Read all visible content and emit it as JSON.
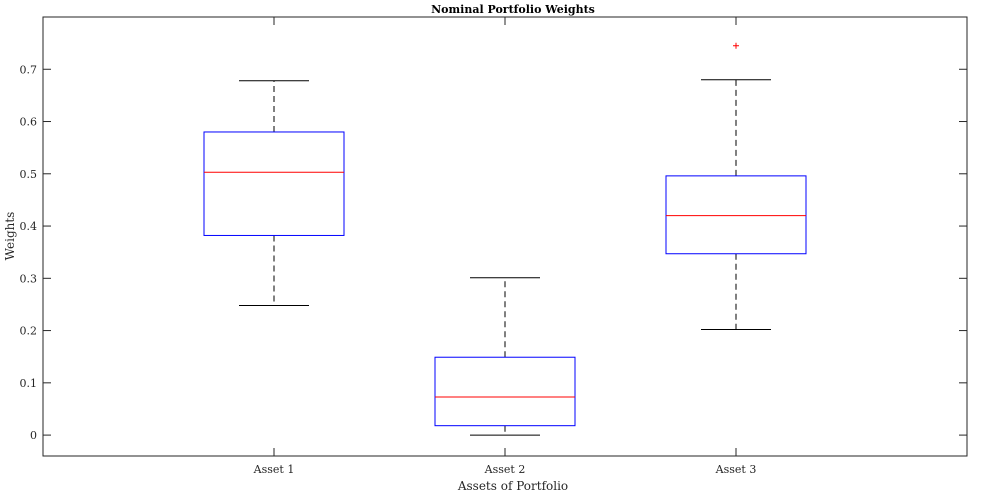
{
  "chart_data": {
    "type": "boxplot",
    "title": "Nominal Portfolio Weights",
    "xlabel": "Assets of Portfolio",
    "ylabel": "Weights",
    "ylim": [
      -0.04,
      0.8
    ],
    "yticks": [
      0,
      0.1,
      0.2,
      0.3,
      0.4,
      0.5,
      0.6,
      0.7
    ],
    "ytick_labels": [
      "0",
      "0.1",
      "0.2",
      "0.3",
      "0.4",
      "0.5",
      "0.6",
      "0.7"
    ],
    "categories": [
      "Asset 1",
      "Asset 2",
      "Asset 3"
    ],
    "boxes": [
      {
        "whisker_low": 0.248,
        "q1": 0.382,
        "median": 0.503,
        "q3": 0.58,
        "whisker_high": 0.678,
        "outliers": []
      },
      {
        "whisker_low": 0.0,
        "q1": 0.018,
        "median": 0.073,
        "q3": 0.149,
        "whisker_high": 0.301,
        "outliers": []
      },
      {
        "whisker_low": 0.202,
        "q1": 0.347,
        "median": 0.42,
        "q3": 0.496,
        "whisker_high": 0.68,
        "outliers": [
          0.745
        ]
      }
    ],
    "colors": {
      "box": "#0000ff",
      "median": "#ff0000",
      "whisker": "#000000",
      "outlier": "#ff0000"
    },
    "grid": false,
    "legend": "none"
  }
}
